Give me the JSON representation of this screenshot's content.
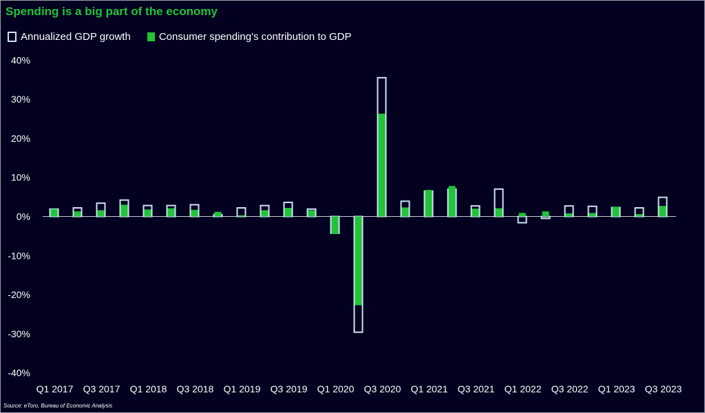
{
  "title": "Spending is a big part of the economy",
  "source": "Source: eToro, Bureau of Economic Analysis",
  "colors": {
    "background": "#03011f",
    "accent": "#22c33a",
    "outline": "#cfe2f7"
  },
  "legend": {
    "outline_label": "Annualized GDP growth",
    "fill_label": "Consumer spending's contribution to GDP"
  },
  "chart_data": {
    "type": "bar",
    "title": "Spending is a big part of the economy",
    "ylim": [
      -40,
      40
    ],
    "y_ticks": [
      "40%",
      "30%",
      "20%",
      "10%",
      "0%",
      "-10%",
      "-20%",
      "-30%",
      "-40%"
    ],
    "y_tick_values": [
      40,
      30,
      20,
      10,
      0,
      -10,
      -20,
      -30,
      -40
    ],
    "categories": [
      "Q1 2017",
      "Q2 2017",
      "Q3 2017",
      "Q4 2017",
      "Q1 2018",
      "Q2 2018",
      "Q3 2018",
      "Q4 2018",
      "Q1 2019",
      "Q2 2019",
      "Q3 2019",
      "Q4 2019",
      "Q1 2020",
      "Q2 2020",
      "Q3 2020",
      "Q4 2020",
      "Q1 2021",
      "Q2 2021",
      "Q3 2021",
      "Q4 2021",
      "Q1 2022",
      "Q2 2022",
      "Q3 2022",
      "Q4 2022",
      "Q1 2023",
      "Q2 2023",
      "Q3 2023"
    ],
    "x_tick_labels": [
      "Q1 2017",
      "Q3 2017",
      "Q1 2018",
      "Q3 2018",
      "Q1 2019",
      "Q3 2019",
      "Q1 2020",
      "Q3 2020",
      "Q1 2021",
      "Q3 2021",
      "Q1 2022",
      "Q3 2022",
      "Q1 2023",
      "Q3 2023"
    ],
    "series": [
      {
        "name": "Annualized GDP growth",
        "values": [
          1.9,
          2.2,
          3.4,
          4.2,
          2.8,
          2.8,
          3.0,
          0.5,
          2.2,
          2.8,
          3.6,
          1.9,
          -4.3,
          -29.6,
          35.5,
          3.9,
          6.5,
          7.0,
          2.7,
          7.0,
          -1.6,
          -0.5,
          2.7,
          2.6,
          2.3,
          2.2,
          4.9
        ]
      },
      {
        "name": "Consumer spending's contribution to GDP",
        "values": [
          1.9,
          1.3,
          1.6,
          3.0,
          1.8,
          2.1,
          1.7,
          1.2,
          0.3,
          1.6,
          2.2,
          1.6,
          -4.5,
          -22.7,
          26.3,
          2.3,
          6.8,
          7.8,
          2.0,
          2.1,
          0.9,
          1.3,
          0.8,
          0.9,
          2.5,
          0.6,
          2.7
        ]
      }
    ]
  }
}
